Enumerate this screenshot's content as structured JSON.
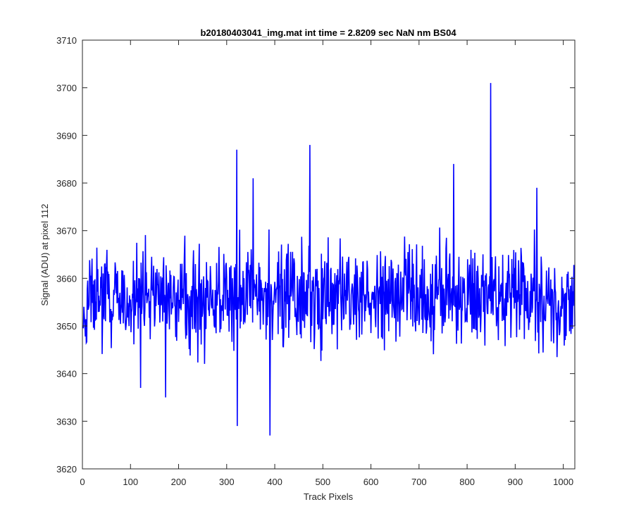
{
  "chart_data": {
    "type": "line",
    "title": "b20180403041_img.mat int time = 2.8209 sec  NaN nm BS04",
    "xlabel": "Track Pixels",
    "ylabel": "Signal (ADU) at pixel 112",
    "xlim": [
      0,
      1024
    ],
    "ylim": [
      3620,
      3710
    ],
    "xticks": [
      0,
      100,
      200,
      300,
      400,
      500,
      600,
      700,
      800,
      900,
      1000
    ],
    "yticks": [
      3620,
      3630,
      3640,
      3650,
      3660,
      3670,
      3680,
      3690,
      3700,
      3710
    ],
    "grid": false,
    "line_color": "#0000ff",
    "series": [
      {
        "name": "",
        "x_start": 1,
        "x_step": 1,
        "summary": {
          "mean": 3656,
          "min": 3627,
          "max": 3701,
          "n_points": 1024
        },
        "notable_points": [
          {
            "x": 1,
            "y": 3650
          },
          {
            "x": 121,
            "y": 3637
          },
          {
            "x": 173,
            "y": 3635
          },
          {
            "x": 321,
            "y": 3687
          },
          {
            "x": 322,
            "y": 3629
          },
          {
            "x": 355,
            "y": 3681
          },
          {
            "x": 390,
            "y": 3627
          },
          {
            "x": 473,
            "y": 3688
          },
          {
            "x": 772,
            "y": 3684
          },
          {
            "x": 849,
            "y": 3701
          },
          {
            "x": 945,
            "y": 3679
          },
          {
            "x": 1024,
            "y": 3650
          }
        ]
      }
    ]
  }
}
